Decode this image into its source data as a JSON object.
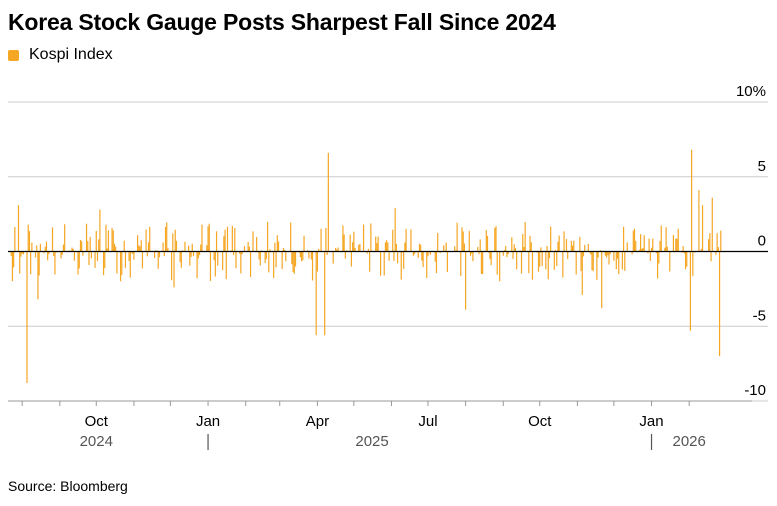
{
  "title": "Korea Stock Gauge Posts Sharpest Fall Since 2024",
  "legend": [
    {
      "label": "Kospi Index",
      "color": "#f5a623"
    }
  ],
  "source": "Source: Bloomberg",
  "chart_data": {
    "type": "bar",
    "series": [
      {
        "name": "Kospi Index",
        "color": "#f5a623"
      }
    ],
    "y_unit": "%",
    "ylim": [
      -10,
      10
    ],
    "yticks": [
      {
        "value": 10,
        "label": "10%"
      },
      {
        "value": 5,
        "label": "5"
      },
      {
        "value": 0,
        "label": "0"
      },
      {
        "value": -5,
        "label": "-5"
      },
      {
        "value": -10,
        "label": "-10"
      }
    ],
    "xlim": [
      "2024-07-22",
      "2026-02-28"
    ],
    "xticks": [
      {
        "date": "2024-10-01",
        "label": "Oct"
      },
      {
        "date": "2025-01-01",
        "label": "Jan"
      },
      {
        "date": "2025-04-01",
        "label": "Apr"
      },
      {
        "date": "2025-07-01",
        "label": "Jul"
      },
      {
        "date": "2025-10-01",
        "label": "Oct"
      },
      {
        "date": "2026-01-01",
        "label": "Jan"
      }
    ],
    "year_labels": [
      {
        "date": "2024-10-01",
        "label": "2024"
      },
      {
        "date": "2025-05-16",
        "label": "2025"
      },
      {
        "date": "2026-02-01",
        "label": "2026"
      }
    ],
    "year_separators": [
      "2025-01-01",
      "2026-01-01"
    ],
    "grid": true,
    "legend_position": "top-left",
    "notable_points": [
      {
        "date": "2024-07-29",
        "value": 3.1
      },
      {
        "date": "2024-08-05",
        "value": -8.8
      },
      {
        "date": "2024-08-06",
        "value": 1.8
      },
      {
        "date": "2024-08-14",
        "value": -3.2
      },
      {
        "date": "2024-10-04",
        "value": 2.8
      },
      {
        "date": "2024-12-04",
        "value": -2.4
      },
      {
        "date": "2025-03-31",
        "value": -5.6
      },
      {
        "date": "2025-04-07",
        "value": -5.6
      },
      {
        "date": "2025-04-10",
        "value": 6.6
      },
      {
        "date": "2025-06-04",
        "value": 2.9
      },
      {
        "date": "2025-08-01",
        "value": -3.9
      },
      {
        "date": "2025-11-05",
        "value": -2.9
      },
      {
        "date": "2025-11-21",
        "value": -3.8
      },
      {
        "date": "2026-02-03",
        "value": 6.8
      },
      {
        "date": "2026-02-02",
        "value": -5.3
      },
      {
        "date": "2026-02-09",
        "value": 4.1
      },
      {
        "date": "2026-02-12",
        "value": 3.1
      },
      {
        "date": "2026-02-20",
        "value": 3.6
      },
      {
        "date": "2026-02-26",
        "value": -7.0
      }
    ],
    "typical_daily_range": [
      -2.0,
      2.0
    ]
  }
}
